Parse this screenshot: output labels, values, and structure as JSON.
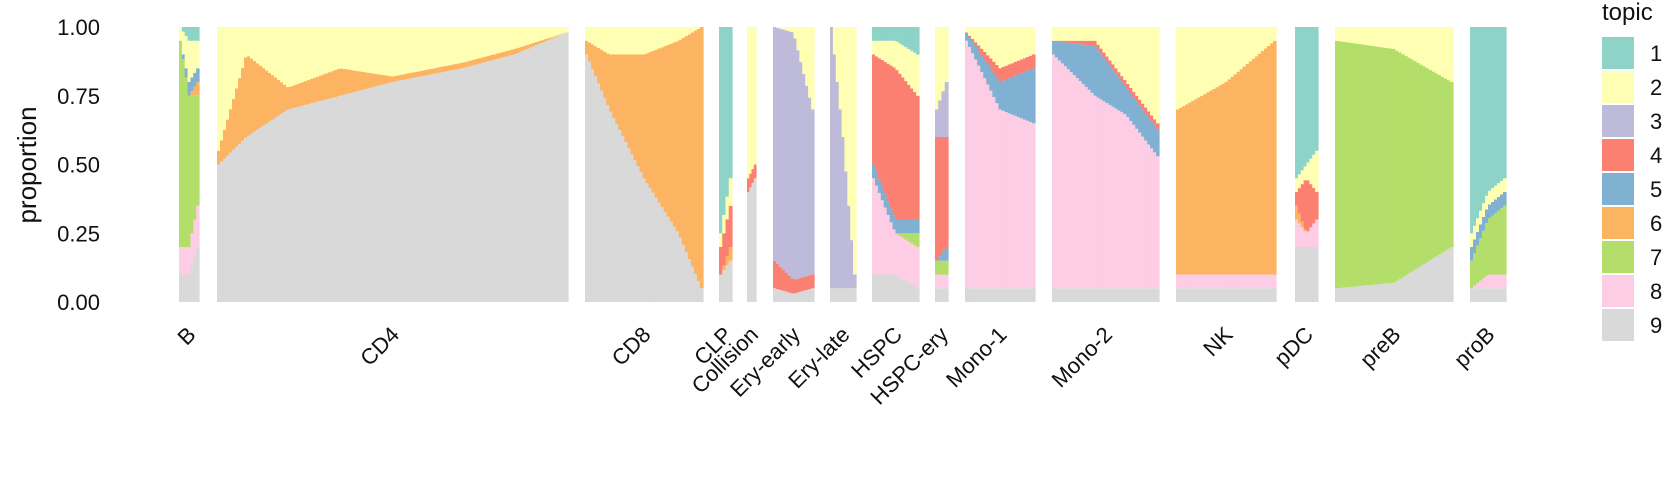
{
  "chart_data": {
    "type": "bar",
    "stacked": true,
    "ylabel": "proportion",
    "ylim": [
      0,
      1
    ],
    "yticks": [
      "0.00",
      "0.25",
      "0.50",
      "0.75",
      "1.00"
    ],
    "legend": {
      "title": "topic",
      "position": "right"
    },
    "topics": [
      {
        "name": "1",
        "color": "#8DD3C7"
      },
      {
        "name": "2",
        "color": "#FFFFB3"
      },
      {
        "name": "3",
        "color": "#BEBADA"
      },
      {
        "name": "4",
        "color": "#FB8072"
      },
      {
        "name": "5",
        "color": "#80B1D3"
      },
      {
        "name": "6",
        "color": "#FDB462"
      },
      {
        "name": "7",
        "color": "#B3DE69"
      },
      {
        "name": "8",
        "color": "#FCCDE5"
      },
      {
        "name": "9",
        "color": "#D9D9D9"
      }
    ],
    "groups": [
      {
        "name": "B",
        "points": [
          {
            "t": 0.0,
            "p": [
              0.0,
              0.05,
              0.0,
              0.0,
              0.0,
              0.0,
              0.75,
              0.1,
              0.1
            ]
          },
          {
            "t": 0.5,
            "p": [
              0.05,
              0.15,
              0.0,
              0.0,
              0.05,
              0.0,
              0.55,
              0.1,
              0.1
            ]
          },
          {
            "t": 1.0,
            "p": [
              0.05,
              0.1,
              0.0,
              0.0,
              0.05,
              0.05,
              0.4,
              0.15,
              0.2
            ]
          }
        ]
      },
      {
        "name": "CD4",
        "points": [
          {
            "t": 0.0,
            "p": [
              0.0,
              0.45,
              0.0,
              0.0,
              0.0,
              0.05,
              0.0,
              0.0,
              0.5
            ]
          },
          {
            "t": 0.08,
            "p": [
              0.0,
              0.1,
              0.0,
              0.0,
              0.0,
              0.3,
              0.0,
              0.0,
              0.6
            ]
          },
          {
            "t": 0.2,
            "p": [
              0.0,
              0.22,
              0.0,
              0.0,
              0.0,
              0.08,
              0.0,
              0.0,
              0.7
            ]
          },
          {
            "t": 0.35,
            "p": [
              0.0,
              0.15,
              0.0,
              0.0,
              0.0,
              0.1,
              0.0,
              0.0,
              0.75
            ]
          },
          {
            "t": 0.5,
            "p": [
              0.0,
              0.18,
              0.0,
              0.0,
              0.0,
              0.02,
              0.0,
              0.0,
              0.8
            ]
          },
          {
            "t": 0.7,
            "p": [
              0.0,
              0.13,
              0.0,
              0.0,
              0.0,
              0.02,
              0.0,
              0.0,
              0.85
            ]
          },
          {
            "t": 0.85,
            "p": [
              0.0,
              0.08,
              0.0,
              0.0,
              0.0,
              0.02,
              0.0,
              0.0,
              0.9
            ]
          },
          {
            "t": 1.0,
            "p": [
              0.0,
              0.02,
              0.0,
              0.0,
              0.0,
              0.0,
              0.0,
              0.0,
              0.98
            ]
          }
        ]
      },
      {
        "name": "CD8",
        "points": [
          {
            "t": 0.0,
            "p": [
              0.0,
              0.05,
              0.0,
              0.0,
              0.0,
              0.05,
              0.0,
              0.0,
              0.9
            ]
          },
          {
            "t": 0.2,
            "p": [
              0.0,
              0.1,
              0.0,
              0.0,
              0.0,
              0.2,
              0.0,
              0.0,
              0.7
            ]
          },
          {
            "t": 0.5,
            "p": [
              0.0,
              0.1,
              0.0,
              0.0,
              0.0,
              0.45,
              0.0,
              0.0,
              0.45
            ]
          },
          {
            "t": 0.8,
            "p": [
              0.0,
              0.05,
              0.0,
              0.0,
              0.0,
              0.7,
              0.0,
              0.0,
              0.25
            ]
          },
          {
            "t": 1.0,
            "p": [
              0.0,
              0.0,
              0.0,
              0.0,
              0.0,
              0.95,
              0.0,
              0.0,
              0.05
            ]
          }
        ]
      },
      {
        "name": "CLP",
        "points": [
          {
            "t": 0.0,
            "p": [
              0.75,
              0.05,
              0.0,
              0.1,
              0.0,
              0.0,
              0.0,
              0.0,
              0.1
            ]
          },
          {
            "t": 1.0,
            "p": [
              0.55,
              0.1,
              0.0,
              0.15,
              0.0,
              0.05,
              0.0,
              0.0,
              0.15
            ]
          }
        ]
      },
      {
        "name": "Collision",
        "points": [
          {
            "t": 0.0,
            "p": [
              0.0,
              0.55,
              0.0,
              0.05,
              0.0,
              0.0,
              0.0,
              0.0,
              0.4
            ]
          },
          {
            "t": 1.0,
            "p": [
              0.0,
              0.5,
              0.0,
              0.05,
              0.0,
              0.0,
              0.0,
              0.0,
              0.45
            ]
          }
        ]
      },
      {
        "name": "Ery-early",
        "points": [
          {
            "t": 0.0,
            "p": [
              0.0,
              0.0,
              0.85,
              0.1,
              0.0,
              0.0,
              0.0,
              0.0,
              0.05
            ]
          },
          {
            "t": 0.5,
            "p": [
              0.0,
              0.02,
              0.9,
              0.05,
              0.0,
              0.0,
              0.0,
              0.0,
              0.03
            ]
          },
          {
            "t": 1.0,
            "p": [
              0.0,
              0.3,
              0.6,
              0.05,
              0.0,
              0.0,
              0.0,
              0.0,
              0.05
            ]
          }
        ]
      },
      {
        "name": "Ery-late",
        "points": [
          {
            "t": 0.0,
            "p": [
              0.0,
              0.0,
              0.95,
              0.0,
              0.0,
              0.0,
              0.0,
              0.0,
              0.05
            ]
          },
          {
            "t": 0.5,
            "p": [
              0.0,
              0.4,
              0.55,
              0.0,
              0.0,
              0.0,
              0.0,
              0.0,
              0.05
            ]
          },
          {
            "t": 1.0,
            "p": [
              0.0,
              0.9,
              0.05,
              0.0,
              0.0,
              0.0,
              0.0,
              0.0,
              0.05
            ]
          }
        ]
      },
      {
        "name": "HSPC",
        "points": [
          {
            "t": 0.0,
            "p": [
              0.05,
              0.05,
              0.0,
              0.4,
              0.05,
              0.0,
              0.0,
              0.35,
              0.1
            ]
          },
          {
            "t": 0.5,
            "p": [
              0.05,
              0.1,
              0.0,
              0.55,
              0.05,
              0.0,
              0.0,
              0.15,
              0.1
            ]
          },
          {
            "t": 1.0,
            "p": [
              0.1,
              0.15,
              0.0,
              0.45,
              0.05,
              0.0,
              0.05,
              0.15,
              0.05
            ]
          }
        ]
      },
      {
        "name": "HSPC-ery",
        "points": [
          {
            "t": 0.0,
            "p": [
              0.0,
              0.3,
              0.1,
              0.45,
              0.0,
              0.0,
              0.05,
              0.05,
              0.05
            ]
          },
          {
            "t": 1.0,
            "p": [
              0.0,
              0.2,
              0.2,
              0.4,
              0.05,
              0.0,
              0.05,
              0.05,
              0.05
            ]
          }
        ]
      },
      {
        "name": "Mono-1",
        "points": [
          {
            "t": 0.0,
            "p": [
              0.0,
              0.02,
              0.0,
              0.0,
              0.03,
              0.0,
              0.0,
              0.9,
              0.05
            ]
          },
          {
            "t": 0.5,
            "p": [
              0.0,
              0.15,
              0.0,
              0.05,
              0.1,
              0.0,
              0.0,
              0.65,
              0.05
            ]
          },
          {
            "t": 1.0,
            "p": [
              0.0,
              0.1,
              0.0,
              0.05,
              0.2,
              0.0,
              0.0,
              0.6,
              0.05
            ]
          }
        ]
      },
      {
        "name": "Mono-2",
        "points": [
          {
            "t": 0.0,
            "p": [
              0.0,
              0.05,
              0.0,
              0.0,
              0.05,
              0.0,
              0.0,
              0.85,
              0.05
            ]
          },
          {
            "t": 0.4,
            "p": [
              0.0,
              0.05,
              0.0,
              0.02,
              0.18,
              0.0,
              0.0,
              0.7,
              0.05
            ]
          },
          {
            "t": 0.7,
            "p": [
              0.0,
              0.2,
              0.0,
              0.02,
              0.1,
              0.0,
              0.0,
              0.63,
              0.05
            ]
          },
          {
            "t": 1.0,
            "p": [
              0.0,
              0.35,
              0.0,
              0.02,
              0.1,
              0.0,
              0.0,
              0.48,
              0.05
            ]
          }
        ]
      },
      {
        "name": "NK",
        "points": [
          {
            "t": 0.0,
            "p": [
              0.0,
              0.3,
              0.0,
              0.0,
              0.0,
              0.6,
              0.0,
              0.05,
              0.05
            ]
          },
          {
            "t": 0.5,
            "p": [
              0.0,
              0.2,
              0.0,
              0.0,
              0.0,
              0.7,
              0.0,
              0.05,
              0.05
            ]
          },
          {
            "t": 1.0,
            "p": [
              0.0,
              0.05,
              0.0,
              0.0,
              0.0,
              0.85,
              0.0,
              0.05,
              0.05
            ]
          }
        ]
      },
      {
        "name": "pDC",
        "points": [
          {
            "t": 0.0,
            "p": [
              0.55,
              0.05,
              0.0,
              0.05,
              0.0,
              0.05,
              0.0,
              0.1,
              0.2
            ]
          },
          {
            "t": 0.5,
            "p": [
              0.5,
              0.05,
              0.0,
              0.2,
              0.0,
              0.0,
              0.0,
              0.05,
              0.2
            ]
          },
          {
            "t": 1.0,
            "p": [
              0.45,
              0.15,
              0.0,
              0.1,
              0.0,
              0.0,
              0.0,
              0.1,
              0.2
            ]
          }
        ]
      },
      {
        "name": "preB",
        "points": [
          {
            "t": 0.0,
            "p": [
              0.0,
              0.05,
              0.0,
              0.0,
              0.0,
              0.0,
              0.9,
              0.0,
              0.05
            ]
          },
          {
            "t": 0.5,
            "p": [
              0.0,
              0.08,
              0.0,
              0.0,
              0.0,
              0.0,
              0.85,
              0.0,
              0.07
            ]
          },
          {
            "t": 1.0,
            "p": [
              0.0,
              0.2,
              0.0,
              0.0,
              0.0,
              0.0,
              0.6,
              0.0,
              0.2
            ]
          }
        ]
      },
      {
        "name": "proB",
        "points": [
          {
            "t": 0.0,
            "p": [
              0.75,
              0.05,
              0.0,
              0.0,
              0.05,
              0.0,
              0.1,
              0.0,
              0.05
            ]
          },
          {
            "t": 0.5,
            "p": [
              0.6,
              0.05,
              0.0,
              0.0,
              0.05,
              0.0,
              0.2,
              0.05,
              0.05
            ]
          },
          {
            "t": 1.0,
            "p": [
              0.55,
              0.05,
              0.0,
              0.0,
              0.05,
              0.0,
              0.25,
              0.05,
              0.05
            ]
          }
        ]
      }
    ]
  }
}
